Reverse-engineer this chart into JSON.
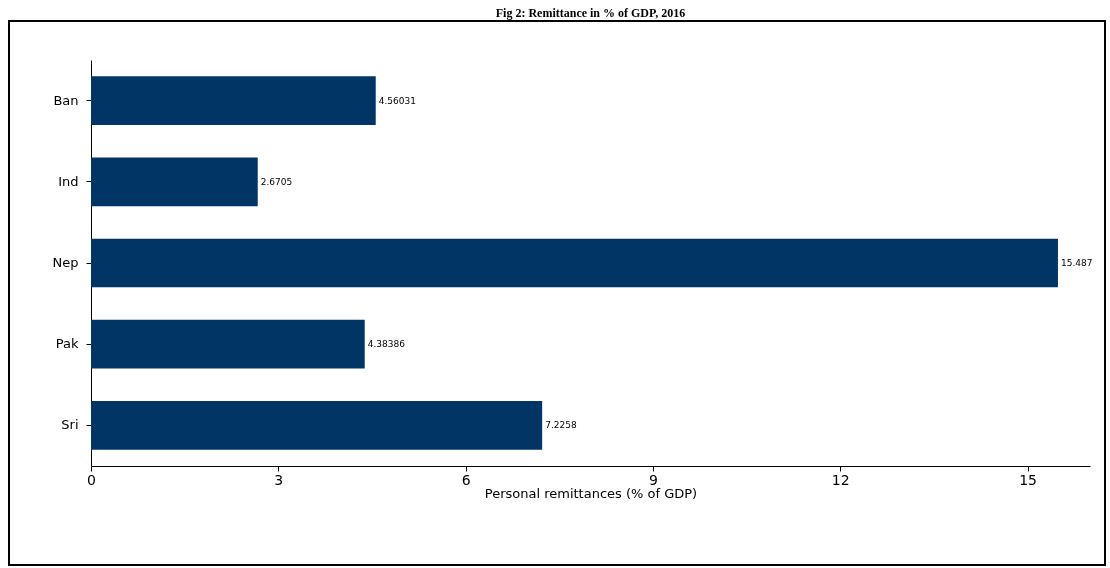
{
  "chart_data": {
    "type": "bar",
    "orientation": "horizontal",
    "title": "Fig 2: Remittance in % of GDP, 2016",
    "xlabel": "Personal remittances (% of GDP)",
    "categories": [
      "Ban",
      "Ind",
      "Nep",
      "Pak",
      "Sri"
    ],
    "values": [
      4.56031,
      2.6705,
      15.487,
      4.38386,
      7.2258
    ],
    "color": "#003566",
    "xlim": [
      0,
      16
    ],
    "xticks": [
      0,
      3,
      6,
      9,
      12,
      15
    ],
    "data_labels": true,
    "grid": false
  }
}
